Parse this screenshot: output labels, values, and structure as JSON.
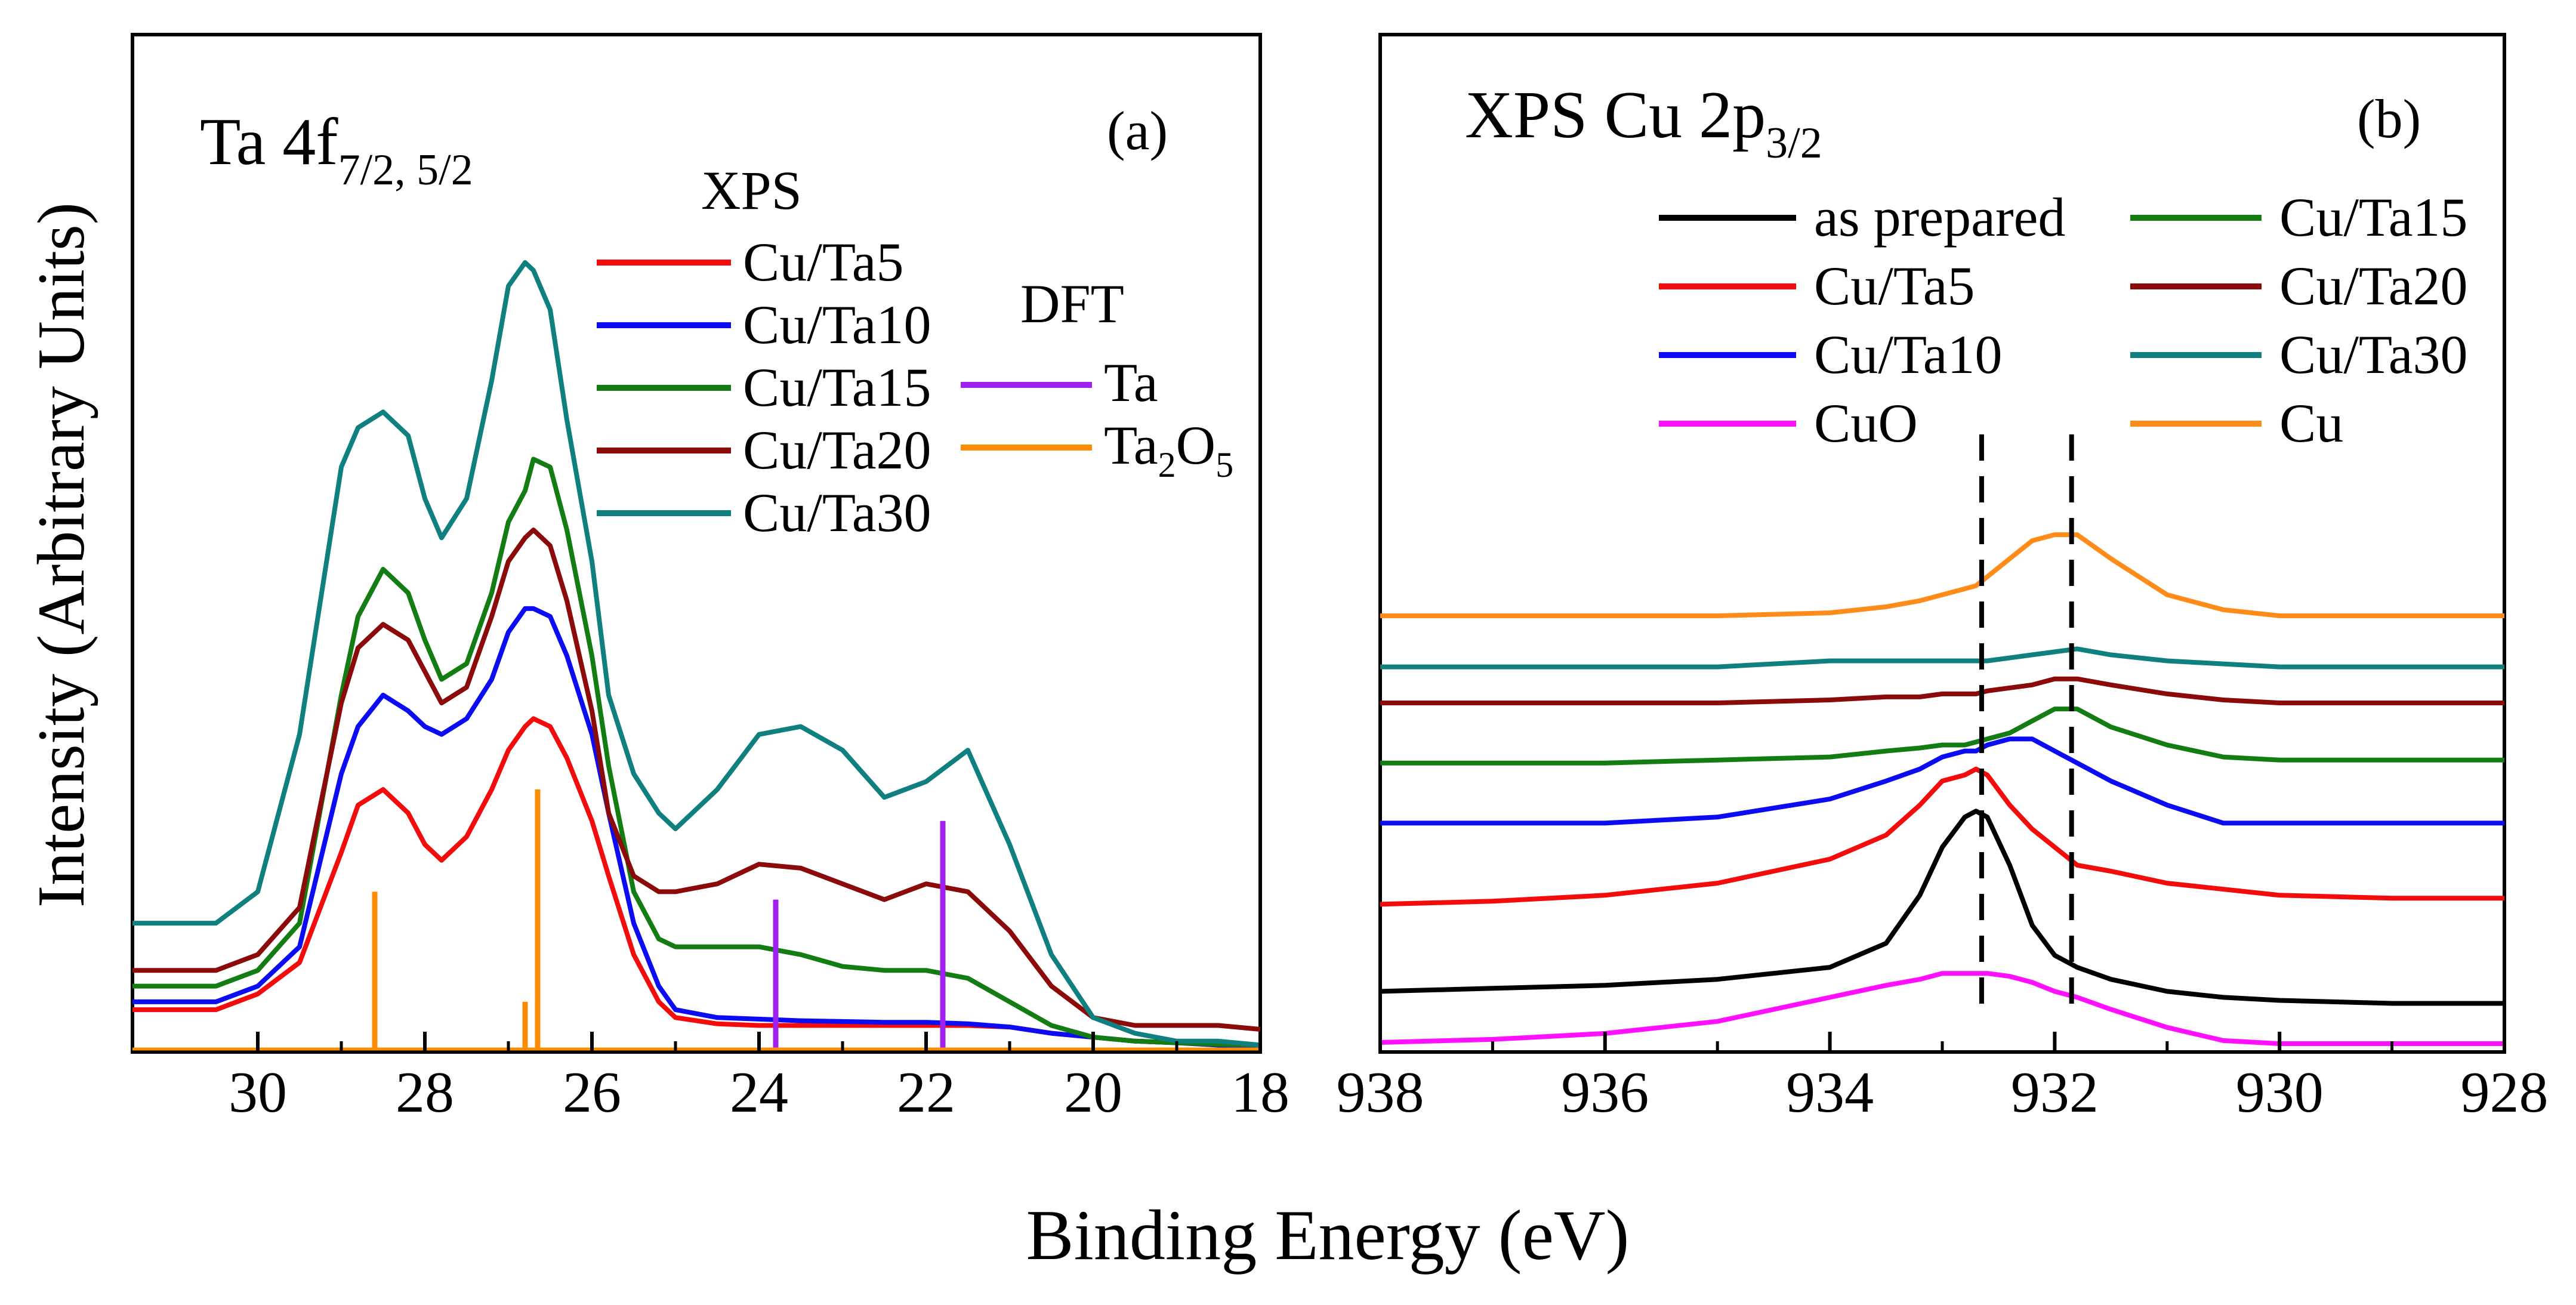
{
  "figure": {
    "ylabel": "Intensity (Arbitrary Units)",
    "xlabel": "Binding Energy (eV)"
  },
  "colors": {
    "as_prepared": "#000000",
    "cu_ta5": "#f20c0c",
    "cu_ta10": "#0c0cf2",
    "cu_ta15": "#137d13",
    "cu_ta20": "#8b0a0a",
    "cu_ta30": "#0f7f7f",
    "cuo": "#ff11ff",
    "cu": "#ff8c1a",
    "dft_ta": "#a020f0",
    "dft_ta2o5": "#ff8c00"
  },
  "chart_data": [
    {
      "panel": "(a)",
      "type": "line",
      "title_main": "Ta 4f",
      "title_sub": "7/2, 5/2",
      "xlim": [
        31.5,
        18
      ],
      "ylim": [
        0,
        100
      ],
      "xticks": [
        "30",
        "28",
        "26",
        "24",
        "22",
        "20",
        "18"
      ],
      "xtick_values": [
        30,
        28,
        26,
        24,
        22,
        20,
        18
      ],
      "legend_groups": {
        "xps": "XPS",
        "dft": "DFT"
      },
      "series": [
        {
          "name": "Cu/Ta5",
          "color_key": "cu_ta5",
          "x": [
            31.5,
            30.5,
            30.0,
            29.5,
            29.0,
            28.8,
            28.5,
            28.2,
            28.0,
            27.8,
            27.5,
            27.2,
            27.0,
            26.8,
            26.7,
            26.5,
            26.3,
            26.0,
            25.8,
            25.5,
            25.2,
            25.0,
            24.5,
            24.0,
            23.5,
            23.0,
            22.5,
            22.0,
            21.5,
            21.0,
            20.5,
            20.0,
            19.5,
            19.0,
            18.5,
            18.0
          ],
          "y": [
            5,
            5,
            7,
            11,
            25,
            31,
            33,
            30,
            26,
            24,
            27,
            33,
            38,
            41,
            42,
            41,
            37,
            29,
            22,
            12,
            6,
            4,
            3.2,
            3,
            3,
            3,
            3,
            3,
            3,
            2.8,
            2,
            1.5,
            1,
            0.8,
            0.5,
            0.4
          ]
        },
        {
          "name": "Cu/Ta10",
          "color_key": "cu_ta10",
          "x": [
            31.5,
            30.5,
            30.0,
            29.5,
            29.0,
            28.8,
            28.5,
            28.2,
            28.0,
            27.8,
            27.5,
            27.2,
            27.0,
            26.8,
            26.7,
            26.5,
            26.3,
            26.0,
            25.8,
            25.5,
            25.2,
            25.0,
            24.5,
            24.0,
            23.5,
            23.0,
            22.5,
            22.0,
            21.5,
            21.0,
            20.5,
            20.0,
            19.5,
            19.0,
            18.5,
            18.0
          ],
          "y": [
            6,
            6,
            8,
            13,
            35,
            41,
            45,
            43,
            41,
            40,
            42,
            47,
            53,
            56,
            56,
            55,
            50,
            40,
            30,
            16,
            8,
            5,
            4,
            3.8,
            3.6,
            3.5,
            3.4,
            3.4,
            3.2,
            2.8,
            2,
            1.5,
            1,
            0.8,
            0.5,
            0.4
          ]
        },
        {
          "name": "Cu/Ta15",
          "color_key": "cu_ta15",
          "x": [
            31.5,
            30.5,
            30.0,
            29.5,
            29.0,
            28.8,
            28.5,
            28.2,
            28.0,
            27.8,
            27.5,
            27.2,
            27.0,
            26.8,
            26.7,
            26.5,
            26.3,
            26.0,
            25.8,
            25.5,
            25.2,
            25.0,
            24.5,
            24.0,
            23.5,
            23.0,
            22.5,
            22.0,
            21.5,
            21.0,
            20.5,
            20.0,
            19.5,
            19.0,
            18.5,
            18.0
          ],
          "y": [
            8,
            8,
            10,
            16,
            45,
            55,
            61,
            58,
            52,
            47,
            49,
            58,
            67,
            71,
            75,
            74,
            66,
            50,
            36,
            20,
            14,
            13,
            13,
            13,
            12,
            10.5,
            10,
            10,
            9,
            6,
            3,
            1.5,
            1,
            0.8,
            0.6,
            0.5
          ]
        },
        {
          "name": "Cu/Ta20",
          "color_key": "cu_ta20",
          "x": [
            31.5,
            30.5,
            30.0,
            29.5,
            29.0,
            28.8,
            28.5,
            28.2,
            28.0,
            27.8,
            27.5,
            27.2,
            27.0,
            26.8,
            26.7,
            26.5,
            26.3,
            26.0,
            25.8,
            25.5,
            25.2,
            25.0,
            24.5,
            24.0,
            23.5,
            23.0,
            22.5,
            22.0,
            21.5,
            21.0,
            20.5,
            20.0,
            19.5,
            19.0,
            18.5,
            18.0
          ],
          "y": [
            10,
            10,
            12,
            18,
            44,
            51,
            54,
            52,
            48,
            44,
            46,
            55,
            62,
            65,
            66,
            64,
            57,
            43,
            30,
            22,
            20,
            20,
            21,
            23.5,
            23,
            21,
            19,
            21,
            20,
            15,
            8,
            4,
            3,
            3,
            3,
            2.5
          ]
        },
        {
          "name": "Cu/Ta30",
          "color_key": "cu_ta30",
          "x": [
            31.5,
            30.5,
            30.0,
            29.5,
            29.0,
            28.8,
            28.5,
            28.2,
            28.0,
            27.8,
            27.5,
            27.2,
            27.0,
            26.8,
            26.7,
            26.5,
            26.3,
            26.0,
            25.8,
            25.5,
            25.2,
            25.0,
            24.5,
            24.0,
            23.5,
            23.0,
            22.5,
            22.0,
            21.5,
            21.0,
            20.5,
            20.0,
            19.5,
            19.0,
            18.5,
            18.0
          ],
          "y": [
            16,
            16,
            20,
            40,
            74,
            79,
            81,
            78,
            70,
            65,
            70,
            85,
            97,
            100,
            99,
            94,
            80,
            62,
            45,
            35,
            30,
            28,
            33,
            40,
            41,
            38,
            32,
            34,
            38,
            26,
            12,
            4,
            2,
            1,
            1,
            0.5
          ]
        }
      ],
      "dft_sticks": [
        {
          "name": "Ta",
          "color_key": "dft_ta",
          "x": [
            23.8,
            21.8
          ],
          "heights": [
            19,
            29
          ]
        },
        {
          "name": "Ta2O5",
          "color_key": "dft_ta2o5",
          "x": [
            28.6,
            26.8,
            26.65
          ],
          "heights": [
            20,
            6,
            33
          ]
        }
      ],
      "dft_label_ta": "Ta",
      "dft_label_ta2o5_main": "Ta",
      "dft_label_ta2o5_sub1": "2",
      "dft_label_ta2o5_mid": "O",
      "dft_label_ta2o5_sub2": "5"
    },
    {
      "panel": "(b)",
      "type": "line",
      "title_main": "XPS Cu 2p",
      "title_sub": "3/2",
      "xlim": [
        938,
        928
      ],
      "ylim": [
        0,
        100
      ],
      "xticks": [
        "938",
        "936",
        "934",
        "932",
        "930",
        "928"
      ],
      "xtick_values": [
        938,
        936,
        934,
        932,
        930,
        928
      ],
      "reference_lines_x": [
        932.65,
        931.85
      ],
      "series": [
        {
          "name": "as prepared",
          "color_key": "as_prepared",
          "x": [
            938.0,
            937.0,
            936.0,
            935.0,
            934.0,
            933.5,
            933.2,
            933.0,
            932.8,
            932.7,
            932.6,
            932.4,
            932.2,
            932.0,
            931.8,
            931.5,
            931.0,
            930.5,
            930.0,
            929.0,
            928.0
          ],
          "y": [
            9,
            9.5,
            10,
            11,
            13,
            17,
            25,
            33,
            38,
            39,
            38,
            30,
            20,
            15,
            13,
            11,
            9,
            8,
            7.5,
            7,
            7
          ]
        },
        {
          "name": "Cu/Ta5",
          "color_key": "cu_ta5",
          "x": [
            938.0,
            937.0,
            936.0,
            935.0,
            934.0,
            933.5,
            933.2,
            933.0,
            932.8,
            932.7,
            932.6,
            932.4,
            932.2,
            932.0,
            931.8,
            931.5,
            931.0,
            930.5,
            930.0,
            929.0,
            928.0
          ],
          "y": [
            23.5,
            24,
            25,
            27,
            31,
            35,
            40,
            44,
            45,
            46,
            45,
            40,
            36,
            33,
            30,
            29,
            27,
            26,
            25,
            24.5,
            24.5
          ]
        },
        {
          "name": "Cu/Ta10",
          "color_key": "cu_ta10",
          "x": [
            938.0,
            937.0,
            936.0,
            935.0,
            934.0,
            933.5,
            933.2,
            933.0,
            932.8,
            932.7,
            932.6,
            932.4,
            932.2,
            932.0,
            931.8,
            931.5,
            931.0,
            930.5,
            930.0,
            929.0,
            928.0
          ],
          "y": [
            37,
            37,
            37,
            38,
            41,
            44,
            46,
            48,
            49,
            49,
            50,
            51,
            51,
            49,
            47,
            44,
            40,
            37,
            37,
            37,
            37
          ]
        },
        {
          "name": "Cu/Ta15",
          "color_key": "cu_ta15",
          "x": [
            938.0,
            937.0,
            936.0,
            935.0,
            934.0,
            933.5,
            933.2,
            933.0,
            932.8,
            932.7,
            932.6,
            932.4,
            932.2,
            932.0,
            931.8,
            931.5,
            931.0,
            930.5,
            930.0,
            929.0,
            928.0
          ],
          "y": [
            47,
            47,
            47,
            47.5,
            48,
            49,
            49.5,
            50,
            50,
            50.5,
            51,
            52,
            54,
            56,
            56,
            53,
            50,
            48,
            47.5,
            47.5,
            47.5
          ]
        },
        {
          "name": "Cu/Ta20",
          "color_key": "cu_ta20",
          "x": [
            938.0,
            937.0,
            936.0,
            935.0,
            934.0,
            933.5,
            933.2,
            933.0,
            932.8,
            932.7,
            932.6,
            932.4,
            932.2,
            932.0,
            931.8,
            931.5,
            931.0,
            930.5,
            930.0,
            929.0,
            928.0
          ],
          "y": [
            57,
            57,
            57,
            57,
            57.5,
            58,
            58,
            58.5,
            58.5,
            58.5,
            59,
            59.5,
            60,
            61,
            61,
            60,
            58.5,
            57.5,
            57,
            57,
            57
          ]
        },
        {
          "name": "Cu/Ta30",
          "color_key": "cu_ta30",
          "x": [
            938.0,
            937.0,
            936.0,
            935.0,
            934.0,
            933.5,
            933.2,
            933.0,
            932.8,
            932.7,
            932.6,
            932.4,
            932.2,
            932.0,
            931.8,
            931.5,
            931.0,
            930.5,
            930.0,
            929.0,
            928.0
          ],
          "y": [
            63,
            63,
            63,
            63,
            64,
            64,
            64,
            64,
            64,
            64,
            64,
            64.5,
            65,
            65.5,
            66,
            65,
            64,
            63.5,
            63,
            63,
            63
          ]
        },
        {
          "name": "CuO",
          "color_key": "cuo",
          "x": [
            938.0,
            937.0,
            936.0,
            935.0,
            934.0,
            933.5,
            933.2,
            933.0,
            932.8,
            932.7,
            932.6,
            932.4,
            932.2,
            932.0,
            931.8,
            931.5,
            931.0,
            930.5,
            930.0,
            929.0,
            928.0
          ],
          "y": [
            0.5,
            1,
            2,
            4,
            8,
            10,
            11,
            12,
            12,
            12,
            12,
            11.5,
            10.5,
            9,
            8,
            6,
            3,
            0.8,
            0.3,
            0.3,
            0.3
          ]
        },
        {
          "name": "Cu",
          "color_key": "cu",
          "x": [
            938.0,
            937.0,
            936.0,
            935.0,
            934.0,
            933.5,
            933.2,
            933.0,
            932.8,
            932.7,
            932.6,
            932.4,
            932.2,
            932.0,
            931.8,
            931.5,
            931.0,
            930.5,
            930.0,
            929.0,
            928.0
          ],
          "y": [
            71.5,
            71.5,
            71.5,
            71.5,
            72,
            73,
            74,
            75,
            76,
            76.5,
            78,
            81,
            84,
            85,
            85,
            81,
            75,
            72.5,
            71.5,
            71.5,
            71.5
          ]
        }
      ]
    }
  ]
}
